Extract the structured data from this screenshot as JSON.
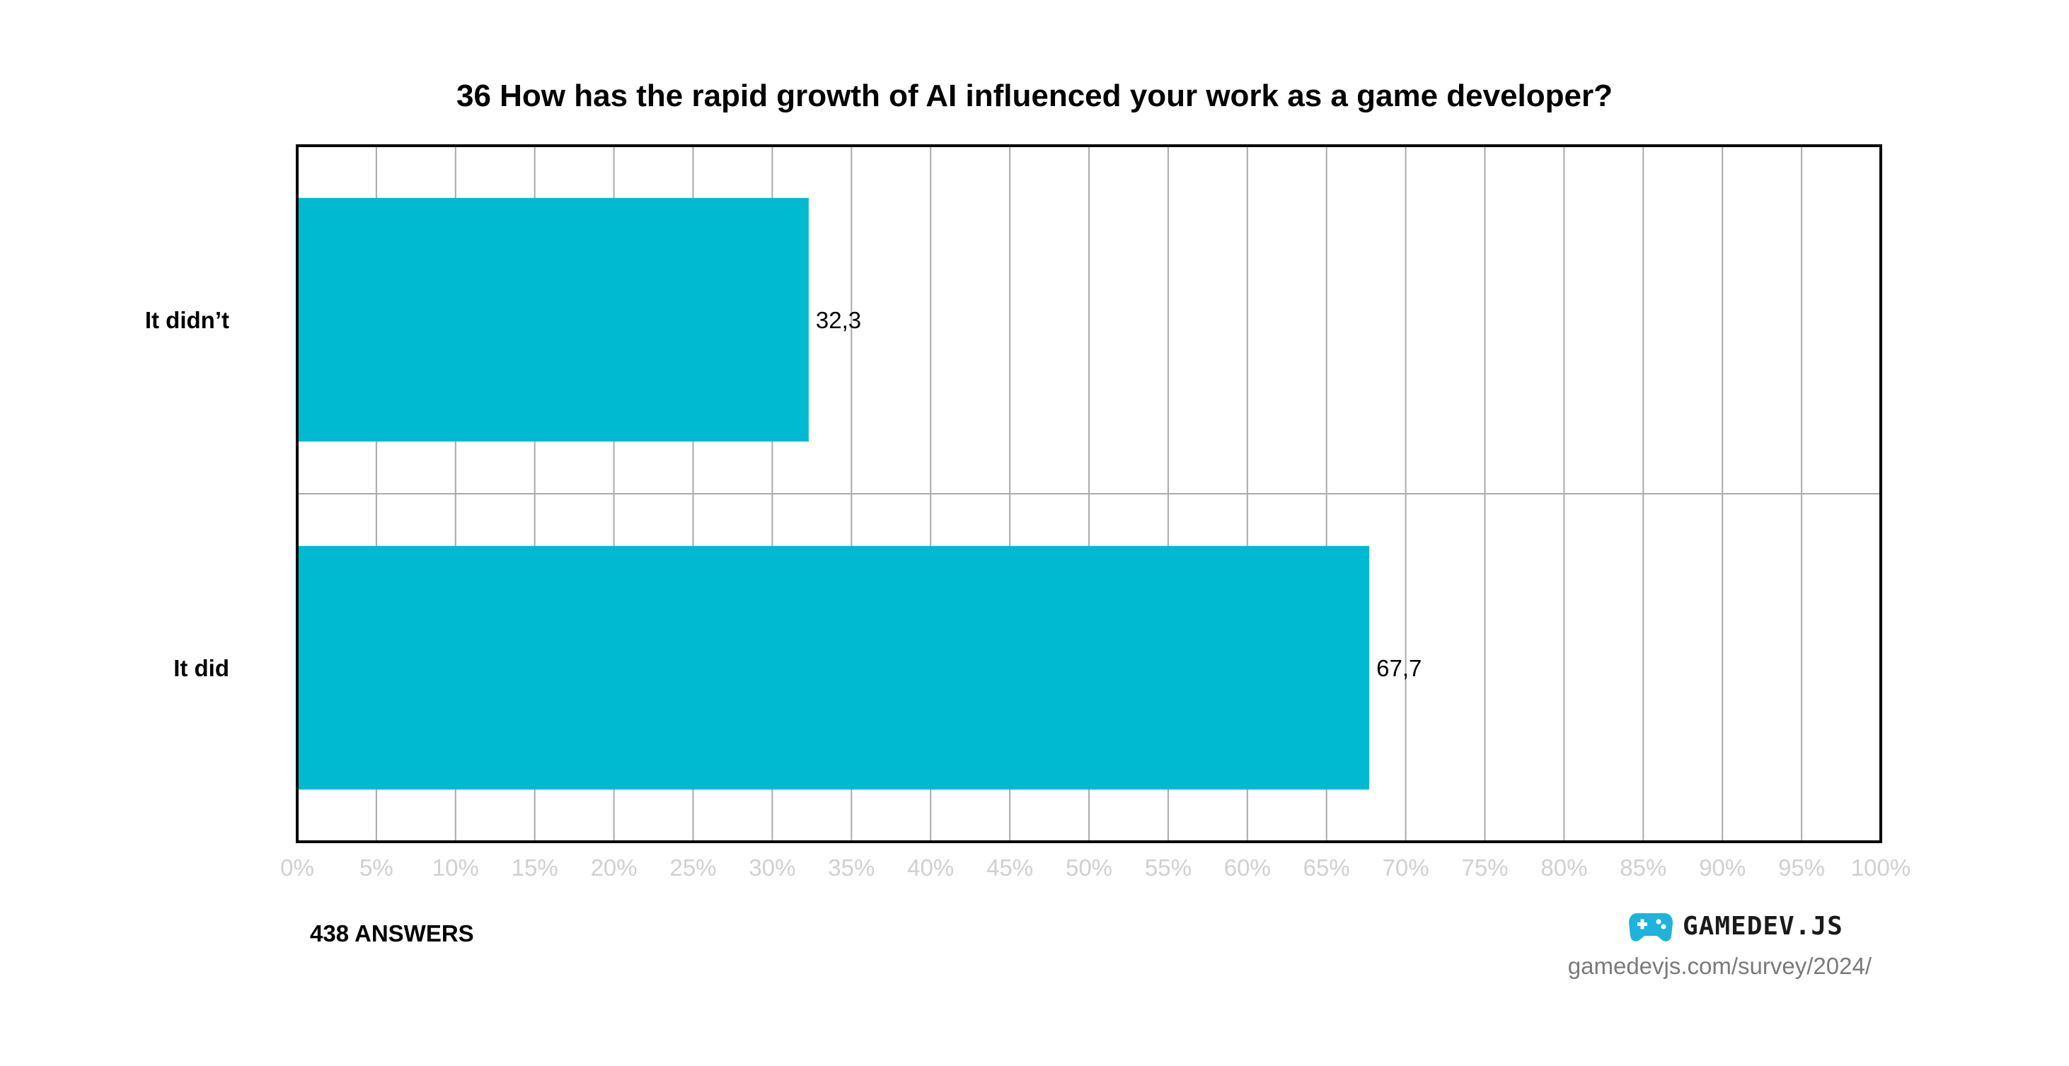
{
  "chart_data": {
    "type": "bar",
    "orientation": "horizontal",
    "title": "36 How has the rapid growth of AI influenced your work as a game developer?",
    "categories": [
      "It didn’t",
      "It did"
    ],
    "values": [
      32.3,
      67.7
    ],
    "value_labels": [
      "32,3",
      "67,7"
    ],
    "xlim": [
      0,
      100
    ],
    "x_ticks": [
      0,
      5,
      10,
      15,
      20,
      25,
      30,
      35,
      40,
      45,
      50,
      55,
      60,
      65,
      70,
      75,
      80,
      85,
      90,
      95,
      100
    ],
    "x_tick_labels": [
      "0%",
      "5%",
      "10%",
      "15%",
      "20%",
      "25%",
      "30%",
      "35%",
      "40%",
      "45%",
      "50%",
      "55%",
      "60%",
      "65%",
      "70%",
      "75%",
      "80%",
      "85%",
      "90%",
      "95%",
      "100%"
    ],
    "xlabel": "",
    "ylabel": "",
    "grid": true,
    "bar_color": "#00BAD1",
    "grid_color": "#AAAAAA",
    "tick_label_color": "#D0D0D0"
  },
  "footer": {
    "answers": "438 ANSWERS",
    "brand_name": "GAMEDEV.JS",
    "brand_icon": "gamepad-icon",
    "brand_icon_color": "#1EB3DA",
    "url": "gamedevjs.com/survey/2024/"
  }
}
